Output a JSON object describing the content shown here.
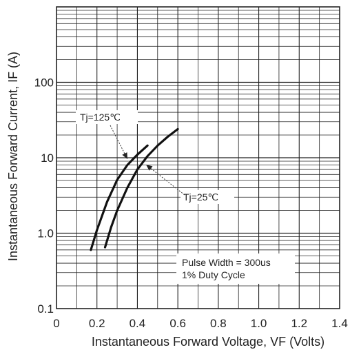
{
  "chart_data": {
    "type": "line",
    "title": "",
    "xlabel": "Instantaneous Forward Voltage, VF (Volts)",
    "ylabel": "Instantaneous Forward Current, IF (A)",
    "xlim": [
      0,
      1.4
    ],
    "ylim": [
      0.1,
      1000
    ],
    "y_scale": "log",
    "grid": true,
    "x_ticks": [
      0,
      0.2,
      0.4,
      0.6,
      0.8,
      1.0,
      1.2,
      1.4
    ],
    "x_tick_labels": [
      "0",
      "0.2",
      "0.4",
      "0.6",
      "0.8",
      "1.0",
      "1.2",
      "1.4"
    ],
    "y_ticks": [
      0.1,
      1,
      10,
      100
    ],
    "y_tick_labels": [
      "0.1",
      "1.0",
      "10",
      "100"
    ],
    "series": [
      {
        "name": "Tj=125℃",
        "x": [
          0.17,
          0.2,
          0.25,
          0.3,
          0.35,
          0.4,
          0.45
        ],
        "y": [
          0.6,
          1.1,
          2.6,
          5.1,
          8.0,
          11.0,
          14.5
        ]
      },
      {
        "name": "Tj=25℃",
        "x": [
          0.24,
          0.27,
          0.3,
          0.35,
          0.4,
          0.45,
          0.5,
          0.55,
          0.6
        ],
        "y": [
          0.65,
          1.2,
          2.0,
          4.0,
          7.0,
          10.5,
          14.5,
          19.0,
          24.0
        ]
      }
    ],
    "annotations": [
      "Tj=125℃",
      "Tj=25℃",
      "Pulse Width = 300us",
      "1% Duty Cycle"
    ]
  },
  "colors": {
    "curve": "#111111",
    "grid": "#222222",
    "text": "#222222"
  }
}
